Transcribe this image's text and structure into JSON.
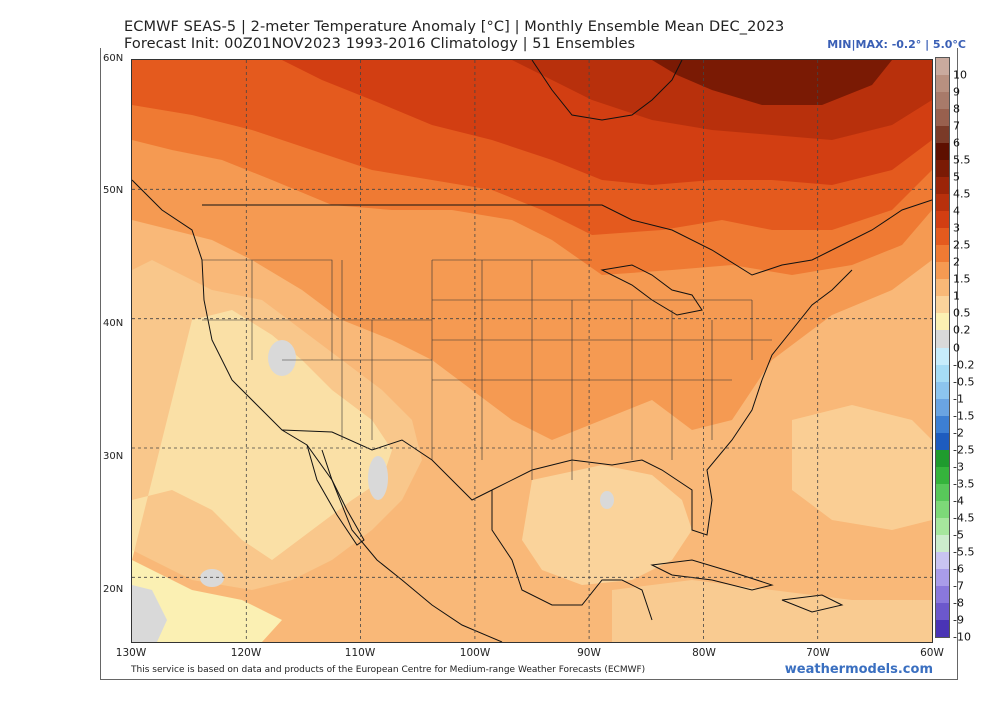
{
  "title": {
    "line1": "ECMWF SEAS-5 | 2-meter Temperature Anomaly [°C] | Monthly Ensemble Mean DEC_2023",
    "line2": "Forecast Init: 00Z01NOV2023     1993-2016 Climatology | 51 Ensembles"
  },
  "minmax": "MIN|MAX: -0.2° | 5.0°C",
  "latitudes": [
    "60N",
    "50N",
    "40N",
    "30N",
    "20N"
  ],
  "longitudes": [
    "130W",
    "120W",
    "110W",
    "100W",
    "90W",
    "80W",
    "70W",
    "60W"
  ],
  "footer": "This service is based on data and products of the European Centre for Medium-range Weather Forecasts (ECMWF)",
  "brand": "weathermodels.com",
  "colorbar": {
    "levels": [
      "10",
      "9",
      "8",
      "7",
      "6",
      "5.5",
      "5",
      "4.5",
      "4",
      "3",
      "2.5",
      "2",
      "1.5",
      "1",
      "0.5",
      "0.2",
      "0",
      "-0.2",
      "-0.5",
      "-1",
      "-1.5",
      "-2",
      "-2.5",
      "-3",
      "-3.5",
      "-4",
      "-4.5",
      "-5",
      "-5.5",
      "-6",
      "-7",
      "-8",
      "-9",
      "-10"
    ],
    "colors": [
      "#c9aa9e",
      "#b89080",
      "#a87a6a",
      "#98604e",
      "#7a3a28",
      "#5e0f00",
      "#7a1a04",
      "#9b2408",
      "#b8300c",
      "#d23e12",
      "#e45a1e",
      "#ef7a33",
      "#f59a52",
      "#f8b877",
      "#fad39b",
      "#fbf0b3",
      "#d9d9d9",
      "#c7ecfb",
      "#a6dcf5",
      "#8cc4ee",
      "#6aa4e2",
      "#3d7fd3",
      "#1e5cbf",
      "#1f9b2e",
      "#35b43c",
      "#58c85a",
      "#7dd978",
      "#a6e69d",
      "#cceccc",
      "#c9c4f1",
      "#a99ce9",
      "#8a78dc",
      "#6c58cc",
      "#4a34b5"
    ]
  },
  "map": {
    "projection": "equirectangular",
    "lon_range": [
      -130,
      -60
    ],
    "lat_range": [
      15,
      60
    ],
    "variable": "2-meter Temperature Anomaly",
    "units": "°C",
    "grid": "dashed 10° lines",
    "anomaly_pattern": [
      "Strongest warm anomaly (+4.5 to +5) over Hudson Bay / northern Quebec",
      "+3 to +4 across southern Canada and the northern border states",
      "+1 to +2 across most of the contiguous US",
      "+0.2 to +0.5 over the Desert Southwest, California and Baja",
      "Near zero (gray) patches over Nevada, Sonora, the Gulf and the eastern Pacific"
    ]
  }
}
